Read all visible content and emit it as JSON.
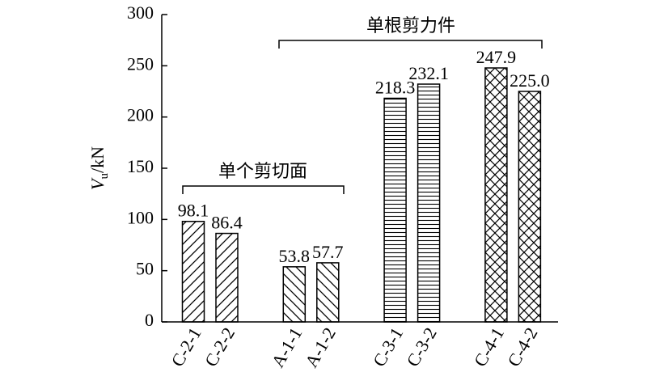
{
  "chart_data": {
    "type": "bar",
    "ylabel": {
      "symbol": "V",
      "subscript": "u",
      "unit": "/kN"
    },
    "categories": [
      "C-2-1",
      "C-2-2",
      "A-1-1",
      "A-1-2",
      "C-3-1",
      "C-3-2",
      "C-4-1",
      "C-4-2"
    ],
    "values": [
      98.1,
      86.4,
      53.8,
      57.7,
      218.3,
      232.1,
      247.9,
      225
    ],
    "value_labels": [
      "98.1",
      "86.4",
      "53.8",
      "57.7",
      "218.3",
      "232.1",
      "247.9",
      "225.0"
    ],
    "hatches": [
      "/",
      "/",
      "\\",
      "\\",
      "-",
      "-",
      "x",
      "x"
    ],
    "color": "#000000",
    "ylim": [
      0,
      300
    ],
    "yticks": [
      0,
      50,
      100,
      150,
      200,
      250,
      300
    ],
    "annotations": [
      "单个剪切面",
      "单根剪力件"
    ]
  }
}
